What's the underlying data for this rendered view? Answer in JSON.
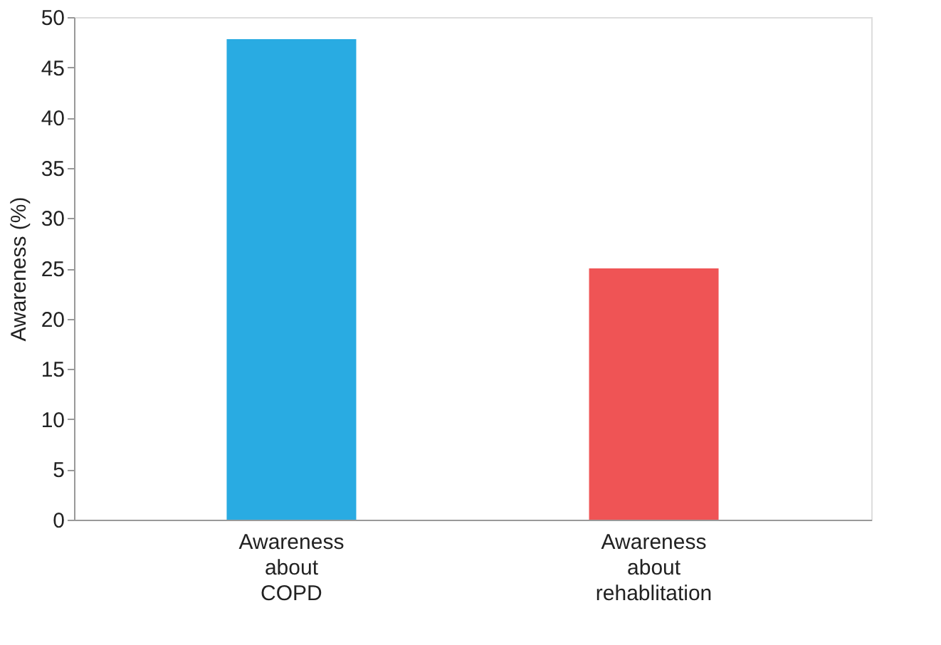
{
  "chart_data": {
    "type": "bar",
    "ylabel": "Awareness (%)",
    "categories": [
      "Awareness about COPD",
      "Awareness about rehablitation"
    ],
    "values": [
      47.8,
      25
    ],
    "colors": [
      "#29abe2",
      "#ef5455"
    ],
    "ylim": [
      0,
      50
    ],
    "yticks": [
      0,
      5,
      10,
      15,
      20,
      25,
      30,
      35,
      40,
      45,
      50
    ],
    "grid": false,
    "legend": false
  }
}
